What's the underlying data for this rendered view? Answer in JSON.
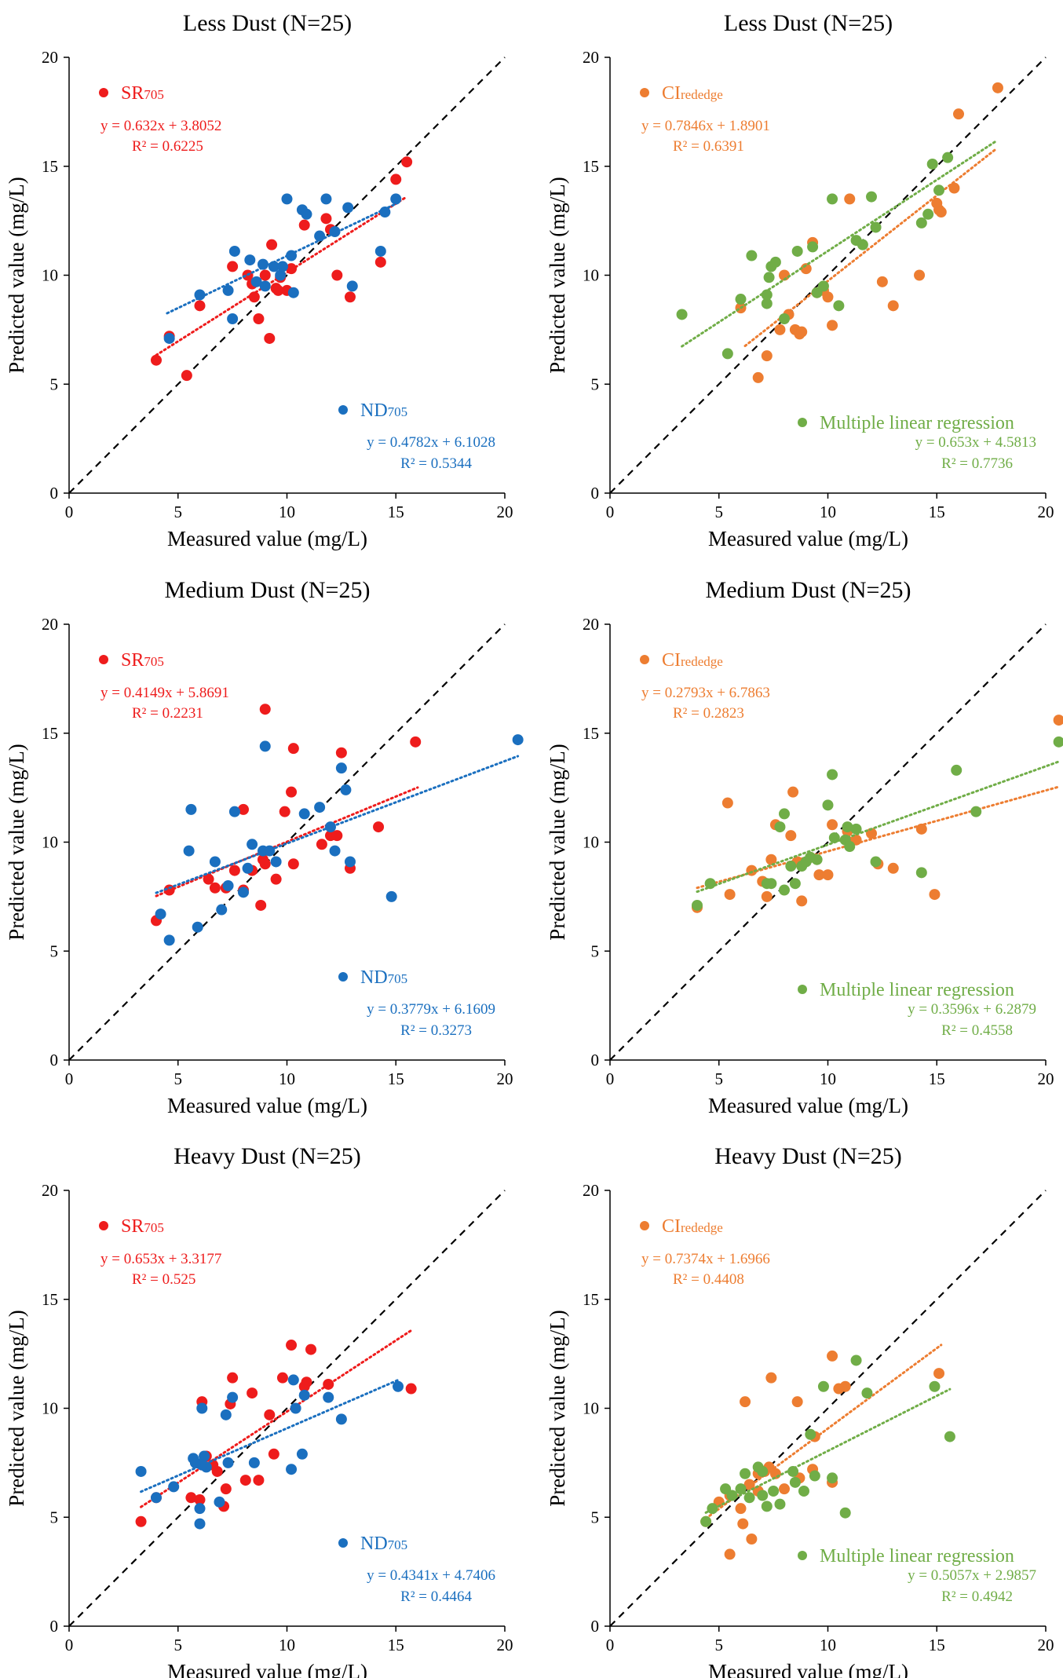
{
  "colors": {
    "red": "#ee1c1c",
    "blue": "#1a6fbf",
    "orange": "#ed7d31",
    "green": "#70ad47",
    "axis": "#000000"
  },
  "labels": {
    "xlabel": "Measured value (mg/L)",
    "ylabel": "Predicted value (mg/L)",
    "ticks_0_20": [
      "0",
      "5",
      "10",
      "15",
      "20"
    ]
  },
  "chart_data": [
    {
      "type": "scatter",
      "title": "Less Dust (N=25)",
      "xlabel": "Measured value (mg/L)",
      "ylabel": "Predicted value (mg/L)",
      "xlim": [
        0,
        20
      ],
      "ylim": [
        0,
        20
      ],
      "reference_line": "1:1 dashed",
      "series": [
        {
          "name": "SR705",
          "label_main": "SR",
          "label_sub": "705",
          "color": "#ee1c1c",
          "legend_position": "top-left",
          "equation": "y = 0.632x + 3.8052",
          "r2": "R² = 0.6225",
          "fit": {
            "slope": 0.632,
            "intercept": 3.8052,
            "x_range": [
              4.0,
              15.5
            ]
          },
          "x": [
            4.0,
            4.6,
            5.4,
            6.0,
            7.5,
            8.2,
            8.4,
            8.5,
            8.7,
            9.0,
            9.2,
            9.3,
            9.5,
            9.6,
            9.7,
            10.0,
            10.2,
            10.8,
            11.8,
            12.0,
            12.3,
            12.9,
            14.3,
            15.0,
            15.5
          ],
          "y": [
            6.1,
            7.2,
            5.4,
            8.6,
            10.4,
            10.0,
            9.6,
            9.0,
            8.0,
            10.0,
            7.1,
            11.4,
            9.4,
            9.3,
            9.9,
            9.3,
            10.3,
            12.3,
            12.6,
            12.1,
            10.0,
            9.0,
            10.6,
            14.4,
            15.2
          ]
        },
        {
          "name": "ND705",
          "label_main": "ND",
          "label_sub": "705",
          "color": "#1a6fbf",
          "legend_position": "bottom-right",
          "equation": "y = 0.4782x + 6.1028",
          "r2": "R² = 0.5344",
          "fit": {
            "slope": 0.4782,
            "intercept": 6.1028,
            "x_range": [
              4.5,
              15.2
            ]
          },
          "x": [
            4.6,
            6.0,
            7.3,
            7.5,
            7.6,
            8.3,
            8.6,
            8.9,
            9.0,
            9.4,
            9.7,
            9.8,
            10.0,
            10.2,
            10.3,
            10.7,
            10.9,
            11.5,
            11.8,
            12.2,
            12.8,
            13.0,
            14.3,
            14.5,
            15.0
          ],
          "y": [
            7.1,
            9.1,
            9.3,
            8.0,
            11.1,
            10.7,
            9.7,
            10.5,
            9.5,
            10.4,
            10.0,
            10.4,
            13.5,
            10.9,
            9.2,
            13.0,
            12.8,
            11.8,
            13.5,
            12.0,
            13.1,
            9.5,
            11.1,
            12.9,
            13.5
          ]
        }
      ]
    },
    {
      "type": "scatter",
      "title": "Less Dust (N=25)",
      "xlabel": "Measured value (mg/L)",
      "ylabel": "Predicted value (mg/L)",
      "xlim": [
        0,
        20
      ],
      "ylim": [
        0,
        20
      ],
      "reference_line": "1:1 dashed",
      "series": [
        {
          "name": "CIrededge",
          "label_main": "CI",
          "label_sub": "rededge",
          "color": "#ed7d31",
          "legend_position": "top-left",
          "equation": "y = 0.7846x + 1.8901",
          "r2": "R² = 0.6391",
          "fit": {
            "slope": 0.7846,
            "intercept": 1.8901,
            "x_range": [
              6.2,
              17.7
            ]
          },
          "x": [
            6.0,
            6.8,
            7.2,
            7.8,
            8.0,
            8.2,
            8.5,
            8.7,
            9.0,
            9.3,
            9.5,
            10.0,
            10.2,
            11.0,
            12.5,
            13.0,
            14.2,
            15.0,
            15.1,
            15.2,
            15.8,
            16.0,
            17.8,
            8.8,
            9.8
          ],
          "y": [
            8.5,
            5.3,
            6.3,
            7.5,
            10.0,
            8.2,
            7.5,
            7.3,
            10.3,
            11.5,
            9.2,
            9.0,
            7.7,
            13.5,
            9.7,
            8.6,
            10.0,
            13.3,
            13.0,
            12.9,
            14.0,
            17.4,
            18.6,
            7.4,
            9.3
          ]
        },
        {
          "name": "Multiple linear regression",
          "label_main": "Multiple linear regression",
          "label_sub": "",
          "color": "#70ad47",
          "legend_position": "bottom-right",
          "equation": "y = 0.653x + 4.5813",
          "r2": "R² = 0.7736",
          "fit": {
            "slope": 0.653,
            "intercept": 4.5813,
            "x_range": [
              3.3,
              17.7
            ]
          },
          "x": [
            3.3,
            5.4,
            6.0,
            6.5,
            7.2,
            7.2,
            7.3,
            7.4,
            7.6,
            8.0,
            8.6,
            9.3,
            9.5,
            9.8,
            10.2,
            10.5,
            11.3,
            11.6,
            12.0,
            12.2,
            14.3,
            14.6,
            14.8,
            15.1,
            15.5
          ],
          "y": [
            8.2,
            6.4,
            8.9,
            10.9,
            8.7,
            9.1,
            9.9,
            10.4,
            10.6,
            8.0,
            11.1,
            11.3,
            9.2,
            9.5,
            13.5,
            8.6,
            11.6,
            11.4,
            13.6,
            12.2,
            12.4,
            12.8,
            15.1,
            13.9,
            15.4
          ]
        }
      ]
    },
    {
      "type": "scatter",
      "title": "Medium Dust (N=25)",
      "xlabel": "Measured value (mg/L)",
      "ylabel": "Predicted value (mg/L)",
      "xlim": [
        0,
        20
      ],
      "ylim": [
        0,
        20
      ],
      "reference_line": "1:1 dashed",
      "series": [
        {
          "name": "SR705",
          "label_main": "SR",
          "label_sub": "705",
          "color": "#ee1c1c",
          "legend_position": "top-left",
          "equation": "y = 0.4149x + 5.8691",
          "r2": "R² = 0.2231",
          "fit": {
            "slope": 0.4149,
            "intercept": 5.8691,
            "x_range": [
              4.0,
              16.0
            ]
          },
          "x": [
            4.0,
            4.6,
            6.4,
            6.7,
            7.2,
            7.6,
            8.0,
            8.4,
            8.8,
            9.0,
            9.0,
            9.5,
            9.9,
            10.2,
            10.3,
            11.6,
            12.0,
            12.3,
            12.5,
            12.9,
            14.2,
            15.9,
            8.0,
            10.3,
            8.9
          ],
          "y": [
            6.4,
            7.8,
            8.3,
            7.9,
            7.9,
            8.7,
            11.5,
            8.7,
            7.1,
            9.0,
            16.1,
            8.3,
            11.4,
            12.3,
            14.3,
            9.9,
            10.3,
            10.3,
            14.1,
            8.8,
            10.7,
            14.6,
            7.8,
            9.0,
            9.2
          ]
        },
        {
          "name": "ND705",
          "label_main": "ND",
          "label_sub": "705",
          "color": "#1a6fbf",
          "legend_position": "bottom-right",
          "equation": "y = 0.3779x + 6.1609",
          "r2": "R² = 0.3273",
          "fit": {
            "slope": 0.3779,
            "intercept": 6.1609,
            "x_range": [
              4.0,
              20.6
            ]
          },
          "x": [
            4.2,
            4.6,
            5.5,
            5.6,
            5.9,
            6.7,
            7.0,
            7.3,
            7.6,
            8.0,
            8.2,
            8.4,
            8.9,
            9.0,
            9.2,
            9.5,
            10.8,
            11.5,
            12.0,
            12.2,
            12.5,
            12.7,
            12.9,
            14.8,
            20.6
          ],
          "y": [
            6.7,
            5.5,
            9.6,
            11.5,
            6.1,
            9.1,
            6.9,
            8.0,
            11.4,
            7.7,
            8.8,
            9.9,
            9.6,
            14.4,
            9.6,
            9.1,
            11.3,
            11.6,
            10.7,
            9.6,
            13.4,
            12.4,
            9.1,
            7.5,
            14.7
          ]
        }
      ]
    },
    {
      "type": "scatter",
      "title": "Medium Dust (N=25)",
      "xlabel": "Measured value (mg/L)",
      "ylabel": "Predicted value (mg/L)",
      "xlim": [
        0,
        20
      ],
      "ylim": [
        0,
        20
      ],
      "reference_line": "1:1 dashed",
      "series": [
        {
          "name": "CIrededge",
          "label_main": "CI",
          "label_sub": "rededge",
          "color": "#ed7d31",
          "legend_position": "top-left",
          "equation": "y = 0.2793x + 6.7863",
          "r2": "R² = 0.2823",
          "fit": {
            "slope": 0.2793,
            "intercept": 6.7863,
            "x_range": [
              4.0,
              20.6
            ]
          },
          "x": [
            4.0,
            5.4,
            5.5,
            6.5,
            7.0,
            7.4,
            7.6,
            8.3,
            8.4,
            8.6,
            8.8,
            9.2,
            9.6,
            10.0,
            10.2,
            10.9,
            11.3,
            12.0,
            12.3,
            13.0,
            14.3,
            14.9,
            20.6,
            7.2,
            11.0
          ],
          "y": [
            7.0,
            11.8,
            7.6,
            8.7,
            8.2,
            9.2,
            10.8,
            10.3,
            12.3,
            9.1,
            7.3,
            9.3,
            8.5,
            8.5,
            10.8,
            10.5,
            10.1,
            10.4,
            9.0,
            8.8,
            10.6,
            7.6,
            15.6,
            7.5,
            10.0
          ]
        },
        {
          "name": "Multiple linear regression",
          "label_main": "Multiple linear regression",
          "label_sub": "",
          "color": "#70ad47",
          "legend_position": "bottom-right",
          "equation": "y = 0.3596x + 6.2879",
          "r2": "R² = 0.4558",
          "fit": {
            "slope": 0.3596,
            "intercept": 6.2879,
            "x_range": [
              4.0,
              20.6
            ]
          },
          "x": [
            4.0,
            4.6,
            7.2,
            7.4,
            7.8,
            8.0,
            8.3,
            8.5,
            8.8,
            9.0,
            9.2,
            9.5,
            10.0,
            10.2,
            10.3,
            10.8,
            10.9,
            11.0,
            11.3,
            12.2,
            14.3,
            15.9,
            16.8,
            20.6,
            8.0
          ],
          "y": [
            7.1,
            8.1,
            8.1,
            8.1,
            10.7,
            11.3,
            8.9,
            8.1,
            8.9,
            9.1,
            9.3,
            9.2,
            11.7,
            13.1,
            10.2,
            10.1,
            10.7,
            9.8,
            10.6,
            9.1,
            8.6,
            13.3,
            11.4,
            14.6,
            7.8
          ]
        }
      ]
    },
    {
      "type": "scatter",
      "title": "Heavy Dust (N=25)",
      "xlabel": "Measured value (mg/L)",
      "ylabel": "Predicted value (mg/L)",
      "xlim": [
        0,
        20
      ],
      "ylim": [
        0,
        20
      ],
      "reference_line": "1:1 dashed",
      "series": [
        {
          "name": "SR705",
          "label_main": "SR",
          "label_sub": "705",
          "color": "#ee1c1c",
          "legend_position": "top-left",
          "equation": "y = 0.653x + 3.3177",
          "r2": "R² = 0.525",
          "fit": {
            "slope": 0.653,
            "intercept": 3.3177,
            "x_range": [
              3.3,
              15.7
            ]
          },
          "x": [
            3.3,
            4.0,
            5.6,
            6.0,
            6.1,
            6.3,
            6.8,
            7.1,
            7.2,
            7.5,
            8.1,
            8.4,
            8.7,
            9.2,
            9.4,
            9.8,
            10.2,
            10.9,
            11.1,
            11.9,
            15.7,
            6.1,
            6.6,
            7.4,
            10.8
          ],
          "y": [
            4.8,
            5.9,
            5.9,
            5.8,
            10.3,
            7.8,
            7.1,
            5.5,
            6.3,
            11.4,
            6.7,
            10.7,
            6.7,
            9.7,
            7.9,
            11.4,
            12.9,
            11.2,
            12.7,
            11.1,
            10.9,
            7.4,
            7.4,
            10.2,
            11.0
          ]
        },
        {
          "name": "ND705",
          "label_main": "ND",
          "label_sub": "705",
          "color": "#1a6fbf",
          "legend_position": "bottom-right",
          "equation": "y = 0.4341x + 4.7406",
          "r2": "R² = 0.4464",
          "fit": {
            "slope": 0.4341,
            "intercept": 4.7406,
            "x_range": [
              3.3,
              15.2
            ]
          },
          "x": [
            3.3,
            4.0,
            4.8,
            5.7,
            5.8,
            6.0,
            6.0,
            6.1,
            6.2,
            6.3,
            6.9,
            7.2,
            7.3,
            7.5,
            8.5,
            10.2,
            10.3,
            10.4,
            10.7,
            10.8,
            11.9,
            12.5,
            15.1,
            5.8,
            6.1
          ],
          "y": [
            7.1,
            5.9,
            6.4,
            7.7,
            7.5,
            4.7,
            5.4,
            10.0,
            7.8,
            7.3,
            5.7,
            9.7,
            7.5,
            10.5,
            7.5,
            7.2,
            11.3,
            10.0,
            7.9,
            10.6,
            10.5,
            9.5,
            11.0,
            7.5,
            7.4
          ]
        }
      ]
    },
    {
      "type": "scatter",
      "title": "Heavy Dust (N=25)",
      "xlabel": "Measured value (mg/L)",
      "ylabel": "Predicted value (mg/L)",
      "xlim": [
        0,
        20
      ],
      "ylim": [
        0,
        20
      ],
      "reference_line": "1:1 dashed",
      "series": [
        {
          "name": "CIrededge",
          "label_main": "CI",
          "label_sub": "rededge",
          "color": "#ed7d31",
          "legend_position": "top-left",
          "equation": "y = 0.7374x + 1.6966",
          "r2": "R² = 0.4408",
          "fit": {
            "slope": 0.7374,
            "intercept": 1.6966,
            "x_range": [
              4.4,
              15.2
            ]
          },
          "x": [
            4.4,
            5.0,
            5.5,
            6.0,
            6.1,
            6.2,
            6.5,
            6.8,
            7.1,
            7.4,
            7.6,
            8.0,
            8.6,
            9.3,
            9.4,
            10.2,
            10.2,
            10.8,
            15.1,
            5.5,
            6.8,
            7.3,
            8.7,
            10.5,
            6.4
          ],
          "y": [
            4.8,
            5.7,
            3.3,
            5.4,
            4.7,
            10.3,
            4.0,
            7.0,
            7.1,
            11.4,
            7.0,
            6.3,
            10.3,
            7.2,
            8.7,
            12.4,
            6.6,
            11.0,
            11.6,
            6.0,
            6.2,
            7.3,
            6.8,
            10.9,
            6.5
          ]
        },
        {
          "name": "Multiple linear regression",
          "label_main": "Multiple linear regression",
          "label_sub": "",
          "color": "#70ad47",
          "legend_position": "bottom-right",
          "equation": "y = 0.5057x + 2.9857",
          "r2": "R² = 0.4942",
          "fit": {
            "slope": 0.5057,
            "intercept": 2.9857,
            "x_range": [
              4.4,
              15.6
            ]
          },
          "x": [
            4.4,
            4.7,
            5.3,
            5.6,
            6.0,
            6.2,
            6.8,
            7.0,
            7.2,
            7.5,
            8.5,
            8.9,
            9.2,
            9.4,
            9.8,
            10.2,
            10.8,
            11.3,
            11.8,
            14.9,
            15.6,
            6.4,
            7.0,
            8.4,
            7.8
          ],
          "y": [
            4.8,
            5.4,
            6.3,
            6.0,
            6.3,
            7.0,
            7.3,
            6.0,
            5.5,
            6.2,
            6.6,
            6.2,
            8.8,
            6.9,
            11.0,
            6.8,
            5.2,
            12.2,
            10.7,
            11.0,
            8.7,
            5.9,
            7.1,
            7.1,
            5.6
          ]
        }
      ]
    }
  ]
}
